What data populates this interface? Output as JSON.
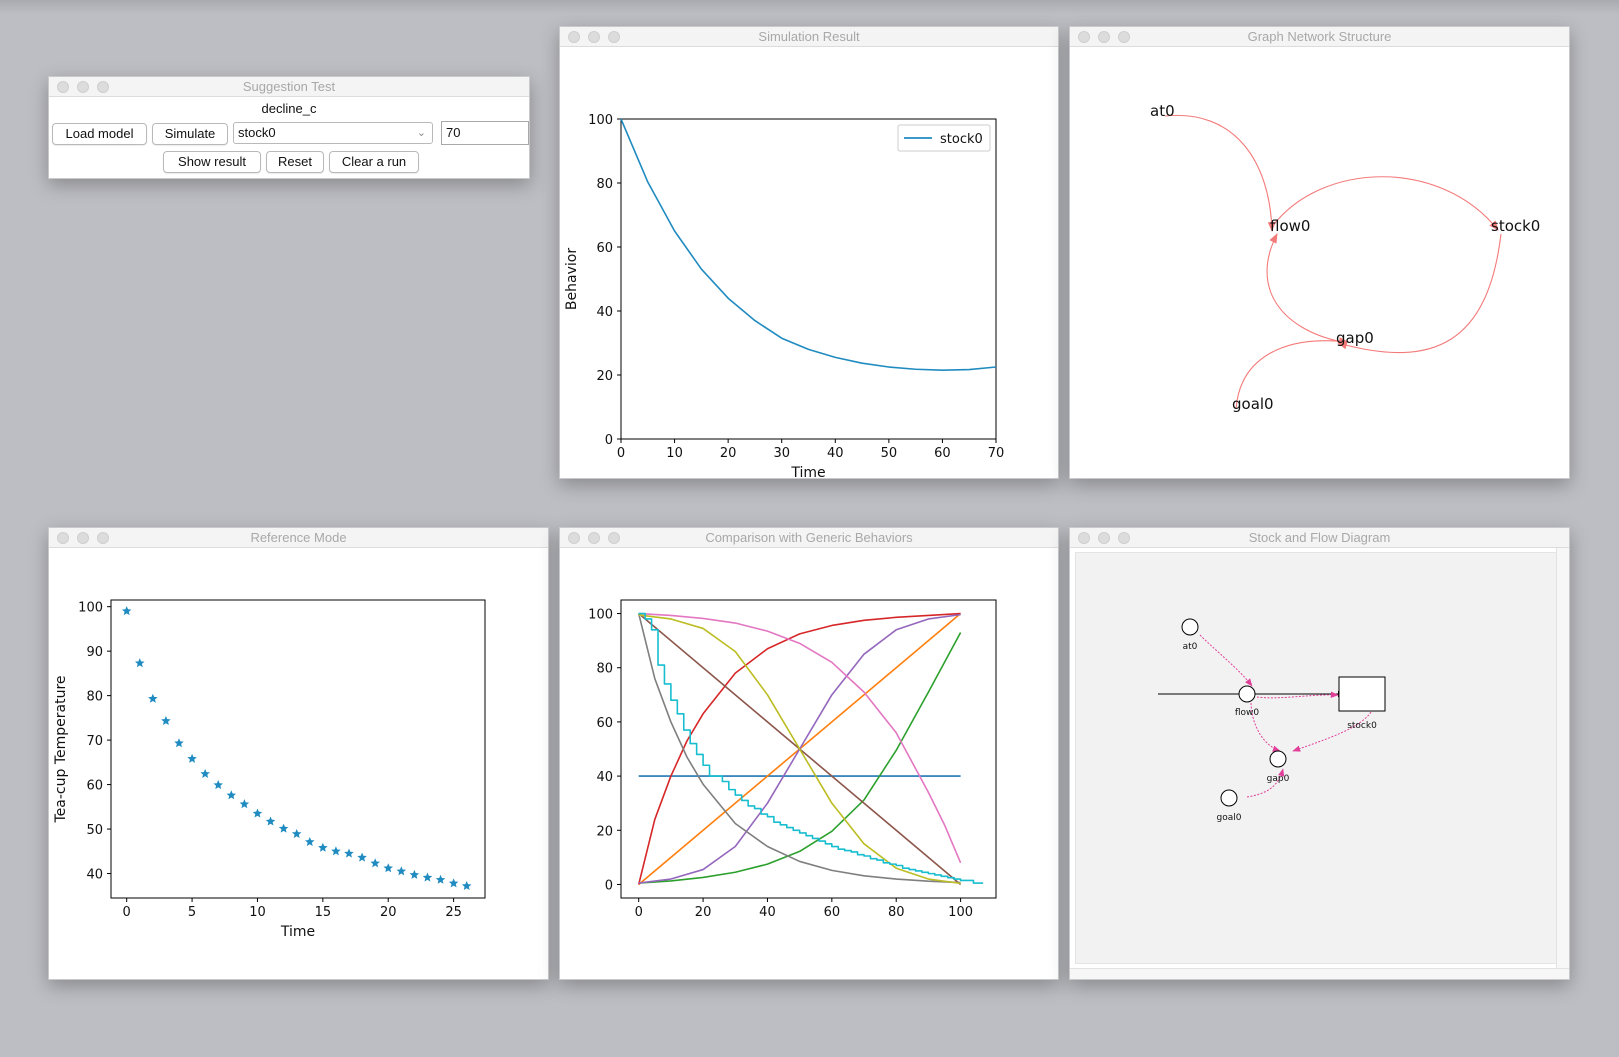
{
  "windows": {
    "suggestion": {
      "title": "Suggestion Test",
      "model_name": "decline_c",
      "buttons": {
        "load": "Load model",
        "simulate": "Simulate",
        "show_result": "Show result",
        "reset": "Reset",
        "clear_run": "Clear a run"
      },
      "variable_select": "stock0",
      "time_input": "70"
    },
    "simulation_result": {
      "title": "Simulation Result"
    },
    "graph_network": {
      "title": "Graph Network Structure"
    },
    "reference_mode": {
      "title": "Reference Mode"
    },
    "comparison": {
      "title": "Comparison with Generic Behaviors"
    },
    "stock_flow": {
      "title": "Stock and Flow Diagram"
    }
  },
  "graph_network": {
    "nodes": [
      "at0",
      "flow0",
      "stock0",
      "gap0",
      "goal0"
    ],
    "edges": [
      [
        "at0",
        "flow0"
      ],
      [
        "flow0",
        "stock0"
      ],
      [
        "stock0",
        "gap0"
      ],
      [
        "gap0",
        "flow0"
      ],
      [
        "goal0",
        "gap0"
      ]
    ],
    "edge_color": "#f47a7a"
  },
  "stock_flow": {
    "labels": {
      "at": "at0",
      "flow": "flow0",
      "stock": "stock0",
      "gap": "gap0",
      "goal": "goal0"
    },
    "link_color": "#e0409a"
  },
  "chart_data": [
    {
      "id": "simulation",
      "type": "line",
      "xlabel": "Time",
      "ylabel": "Behavior",
      "xlim": [
        0,
        70
      ],
      "ylim": [
        0,
        100
      ],
      "xticks": [
        0,
        10,
        20,
        30,
        40,
        50,
        60,
        70
      ],
      "yticks": [
        0,
        20,
        40,
        60,
        80,
        100
      ],
      "legend": "top-right",
      "series": [
        {
          "name": "stock0",
          "color": "#1f8bc0",
          "x": [
            0,
            5,
            10,
            15,
            20,
            25,
            30,
            35,
            40,
            45,
            50,
            55,
            60,
            65,
            70
          ],
          "values": [
            100,
            80.3,
            65.0,
            53.1,
            44.0,
            37.0,
            31.5,
            28.0,
            25.5,
            23.7,
            22.5,
            21.8,
            21.5,
            21.7,
            22.5
          ]
        }
      ]
    },
    {
      "id": "reference",
      "type": "scatter",
      "marker": "star",
      "xlabel": "Time",
      "ylabel": "Tea-cup Temperature",
      "xlim": [
        -1.2,
        27.4
      ],
      "ylim": [
        34.5,
        101.5
      ],
      "xticks": [
        0,
        5,
        10,
        15,
        20,
        25
      ],
      "yticks": [
        40,
        50,
        60,
        70,
        80,
        90,
        100
      ],
      "series": [
        {
          "color": "#1f8bc0",
          "x": [
            0,
            1,
            2,
            3,
            4,
            5,
            6,
            7,
            8,
            9,
            10,
            11,
            12,
            13,
            14,
            15,
            16,
            17,
            18,
            19,
            20,
            21,
            22,
            23,
            24,
            25,
            26
          ],
          "values": [
            99,
            87.3,
            79.3,
            74.3,
            69.3,
            65.8,
            62.4,
            59.9,
            57.6,
            55.6,
            53.5,
            51.7,
            50.1,
            48.9,
            47.1,
            45.8,
            45.0,
            44.5,
            43.6,
            42.3,
            41.2,
            40.5,
            39.7,
            39.1,
            38.6,
            37.8,
            37.2
          ]
        }
      ]
    },
    {
      "id": "comparison",
      "type": "line",
      "xlim": [
        -5.5,
        111
      ],
      "ylim": [
        -5,
        105
      ],
      "xticks": [
        0,
        20,
        40,
        60,
        80,
        100
      ],
      "yticks": [
        0,
        20,
        40,
        60,
        80,
        100
      ],
      "series": [
        {
          "color": "#1f77b4",
          "x": [
            0,
            100
          ],
          "values": [
            40,
            40
          ]
        },
        {
          "color": "#ff7f0e",
          "x": [
            0,
            100
          ],
          "values": [
            0,
            100
          ]
        },
        {
          "color": "#2ca02c",
          "x": [
            0,
            10,
            20,
            30,
            40,
            50,
            60,
            70,
            80,
            90,
            100
          ],
          "values": [
            0.5,
            1.3,
            2.6,
            4.5,
            7.5,
            12.2,
            19.6,
            31.2,
            49.5,
            71.0,
            93.0
          ]
        },
        {
          "color": "#d62728",
          "x": [
            0,
            5,
            10,
            15,
            20,
            30,
            40,
            50,
            60,
            70,
            80,
            90,
            100
          ],
          "values": [
            0,
            24,
            40,
            53,
            63,
            78,
            87,
            92.5,
            95.6,
            97.5,
            98.6,
            99.3,
            100
          ]
        },
        {
          "color": "#9467bd",
          "x": [
            0,
            10,
            20,
            30,
            40,
            45,
            50,
            55,
            60,
            70,
            80,
            90,
            100
          ],
          "values": [
            0.5,
            2,
            5.5,
            14,
            30,
            40,
            50,
            60,
            70,
            85,
            94,
            98,
            99.6
          ]
        },
        {
          "color": "#8c564b",
          "x": [
            0,
            100
          ],
          "values": [
            100,
            0
          ]
        },
        {
          "color": "#e377c2",
          "x": [
            0,
            10,
            20,
            30,
            40,
            50,
            60,
            70,
            80,
            90,
            95,
            100
          ],
          "values": [
            100,
            99.3,
            98.2,
            96.5,
            93.5,
            89,
            82,
            71,
            56,
            34,
            22,
            8
          ]
        },
        {
          "color": "#7f7f7f",
          "x": [
            0,
            5,
            10,
            15,
            20,
            30,
            40,
            50,
            60,
            70,
            80,
            90,
            100
          ],
          "values": [
            100,
            76,
            60,
            47,
            37,
            22.5,
            14,
            8.5,
            5.2,
            3.2,
            2,
            1.2,
            0.7
          ]
        },
        {
          "color": "#bcbd22",
          "x": [
            0,
            10,
            20,
            30,
            40,
            45,
            50,
            55,
            60,
            70,
            80,
            90,
            100
          ],
          "values": [
            99.5,
            98,
            94.5,
            86,
            70,
            60,
            50,
            40,
            30,
            15,
            6,
            2,
            0.4
          ]
        },
        {
          "color": "#17becf",
          "step": true,
          "x": [
            0,
            2,
            4,
            6,
            8,
            10,
            12,
            14,
            16,
            18,
            20,
            22,
            24,
            26,
            28,
            30,
            32,
            34,
            36,
            38,
            40,
            42,
            44,
            46,
            48,
            50,
            52,
            54,
            56,
            58,
            60,
            62,
            64,
            66,
            68,
            70,
            72,
            74,
            76,
            78,
            80,
            82,
            84,
            86,
            88,
            90,
            92,
            94,
            96,
            98,
            100,
            104,
            107
          ],
          "values": [
            100,
            98,
            94,
            81,
            74,
            68,
            63,
            57,
            52,
            48,
            44,
            40,
            40,
            38,
            35,
            33,
            31,
            29,
            28,
            26,
            25,
            23,
            22,
            21,
            20,
            19,
            18,
            17,
            16,
            15,
            14,
            13,
            12.5,
            12,
            11,
            10.5,
            9.5,
            9,
            8,
            7.5,
            7,
            6,
            5.5,
            5,
            4.5,
            4,
            3.5,
            3,
            2.5,
            2,
            1.5,
            0.5,
            0.5
          ]
        }
      ]
    }
  ]
}
